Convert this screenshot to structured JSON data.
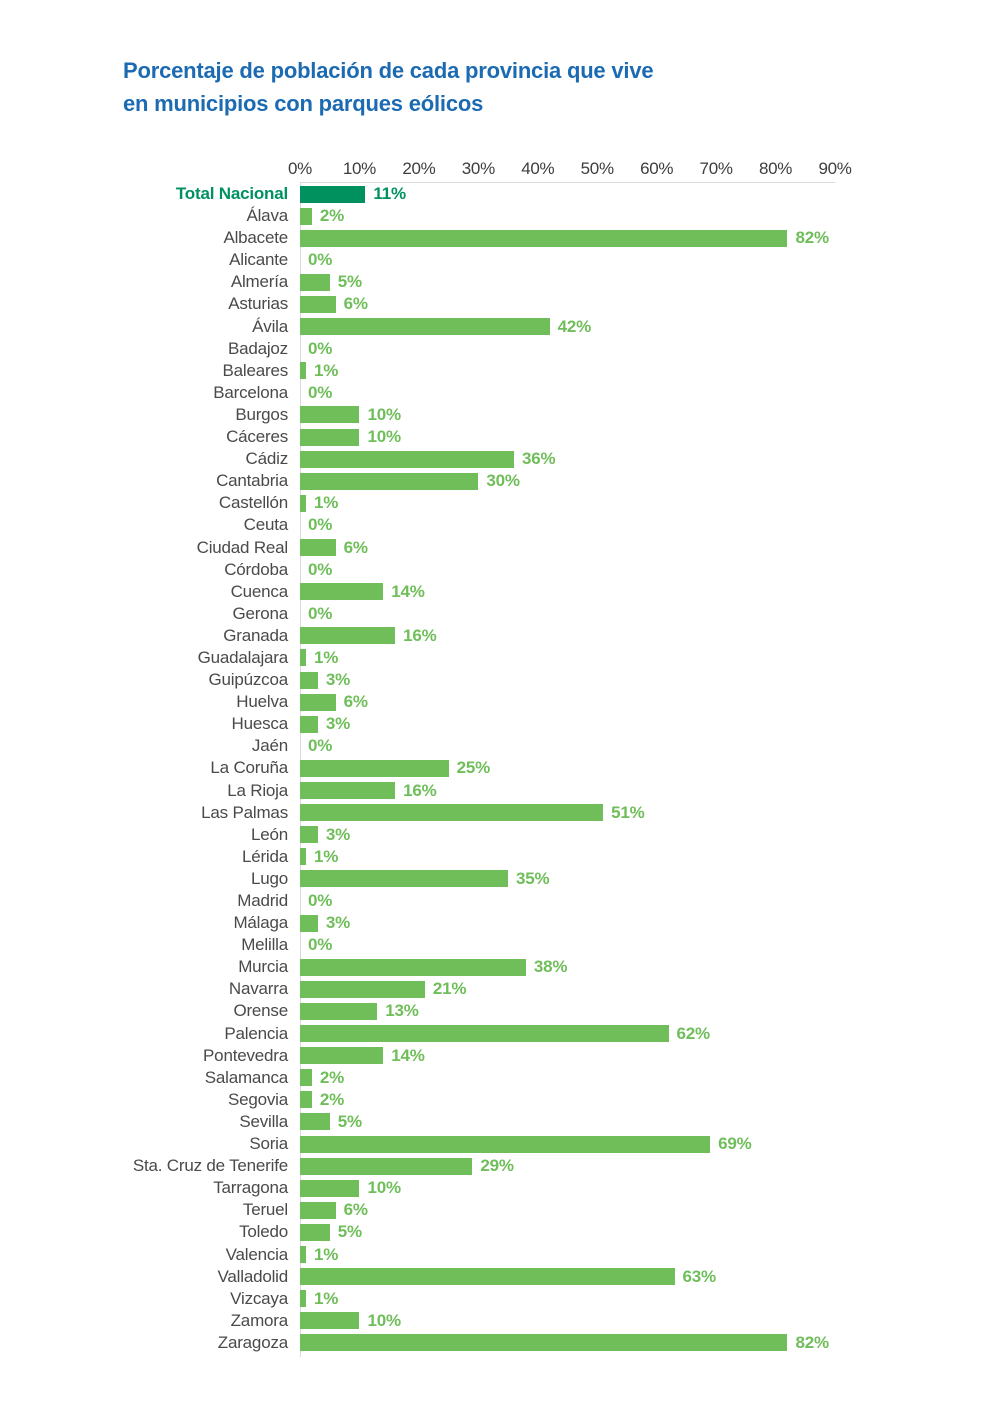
{
  "header": {
    "title_lines": [
      "Porcentaje de población de cada provincia que vive",
      "en municipios con parques eólicos"
    ]
  },
  "chart_data": {
    "type": "bar",
    "orientation": "horizontal",
    "title": "Porcentaje de población de cada provincia que vive en municipios con parques eólicos",
    "xlabel": "",
    "ylabel": "",
    "unit": "%",
    "xlim": [
      0,
      90
    ],
    "x_ticks": [
      "0%",
      "10%",
      "20%",
      "30%",
      "40%",
      "50%",
      "60%",
      "70%",
      "80%",
      "90%"
    ],
    "grid": false,
    "legend": "none",
    "highlight_index": 0,
    "categories": [
      "Total Nacional",
      "Álava",
      "Albacete",
      "Alicante",
      "Almería",
      "Asturias",
      "Ávila",
      "Badajoz",
      "Baleares",
      "Barcelona",
      "Burgos",
      "Cáceres",
      "Cádiz",
      "Cantabria",
      "Castellón",
      "Ceuta",
      "Ciudad Real",
      "Córdoba",
      "Cuenca",
      "Gerona",
      "Granada",
      "Guadalajara",
      "Guipúzcoa",
      "Huelva",
      "Huesca",
      "Jaén",
      "La Coruña",
      "La Rioja",
      "Las Palmas",
      "León",
      "Lérida",
      "Lugo",
      "Madrid",
      "Málaga",
      "Melilla",
      "Murcia",
      "Navarra",
      "Orense",
      "Palencia",
      "Pontevedra",
      "Salamanca",
      "Segovia",
      "Sevilla",
      "Soria",
      "Sta. Cruz de Tenerife",
      "Tarragona",
      "Teruel",
      "Toledo",
      "Valencia",
      "Valladolid",
      "Vizcaya",
      "Zamora",
      "Zaragoza"
    ],
    "values": [
      11,
      2,
      82,
      0,
      5,
      6,
      42,
      0,
      1,
      0,
      10,
      10,
      36,
      30,
      1,
      0,
      6,
      0,
      14,
      0,
      16,
      1,
      3,
      6,
      3,
      0,
      25,
      16,
      51,
      3,
      1,
      35,
      0,
      3,
      0,
      38,
      21,
      13,
      62,
      14,
      2,
      2,
      5,
      69,
      29,
      10,
      6,
      5,
      1,
      63,
      1,
      10,
      82
    ],
    "display_values": [
      "11%",
      "2%",
      "82%",
      "0%",
      "5%",
      "6%",
      "42%",
      "0%",
      "1%",
      "0%",
      "10%",
      "10%",
      "36%",
      "30%",
      "1%",
      "0%",
      "6%",
      "0%",
      "14%",
      "0%",
      "16%",
      "1%",
      "3%",
      "6%",
      "3%",
      "0%",
      "25%",
      "16%",
      "51%",
      "3%",
      "1%",
      "35%",
      "0%",
      "3%",
      "0%",
      "38%",
      "21%",
      "13%",
      "62%",
      "14%",
      "2%",
      "2%",
      "5%",
      "69%",
      "29%",
      "10%",
      "6%",
      "5%",
      "1%",
      "63%",
      "1%",
      "10%",
      "82%"
    ],
    "colors": {
      "title": "#1c6bb2",
      "bar": "#6fbe5a",
      "value_label": "#6fbe5a",
      "highlight": "#00915f",
      "axis_line": "#d9d9d9",
      "tick_label": "#3d3d3d",
      "category_label": "#4a4a4a"
    }
  }
}
